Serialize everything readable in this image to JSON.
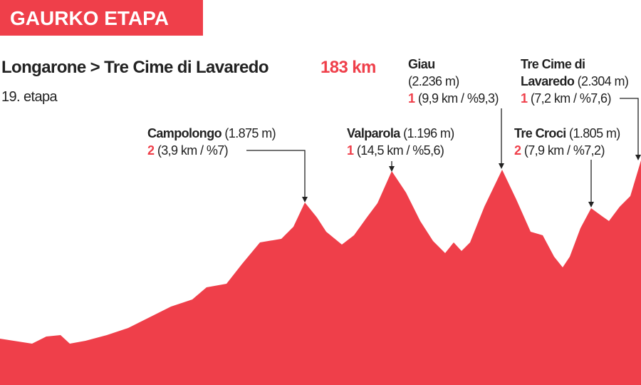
{
  "header": {
    "label": "GAURKO ETAPA"
  },
  "title": {
    "route": "Longarone > Tre Cime di Lavaredo",
    "distance": "183 km",
    "stage": "19. etapa"
  },
  "climbs": [
    {
      "name": "Campolongo",
      "elevation": "(1.875 m)",
      "category": "2",
      "detail": "(3,9 km / %7)"
    },
    {
      "name": "Valparola",
      "elevation": "(1.196 m)",
      "category": "1",
      "detail": "(14,5 km / %5,6)"
    },
    {
      "name": "Giau",
      "elevation": "(2.236 m)",
      "category": "1",
      "detail": "(9,9 km / %9,3)"
    },
    {
      "name_lines": [
        "Tre Cime di",
        "Lavaredo"
      ],
      "elevation": "(2.304 m)",
      "category": "1",
      "detail": "(7,2 km / %7,6)"
    },
    {
      "name": "Tre Croci",
      "elevation": "(1.805 m)",
      "category": "2",
      "detail": "(7,9 km / %7,2)"
    }
  ]
}
